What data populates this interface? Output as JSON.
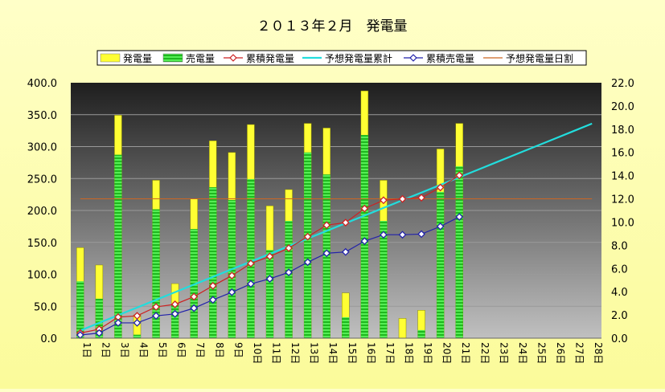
{
  "chart_data": {
    "type": "bar",
    "title": "２０１３年２月　発電量",
    "categories": [
      "1日",
      "2日",
      "3日",
      "4日",
      "5日",
      "6日",
      "7日",
      "8日",
      "9日",
      "10日",
      "11日",
      "12日",
      "13日",
      "14日",
      "15日",
      "16日",
      "17日",
      "18日",
      "19日",
      "20日",
      "21日",
      "22日",
      "23日",
      "24日",
      "25日",
      "26日",
      "27日",
      "28日"
    ],
    "y_left": {
      "ylim": [
        0,
        400
      ],
      "ticks": [
        "0.0",
        "50.0",
        "100.0",
        "150.0",
        "200.0",
        "250.0",
        "300.0",
        "350.0",
        "400.0"
      ]
    },
    "y_right": {
      "ylim": [
        0,
        22
      ],
      "ticks": [
        "0.0",
        "2.0",
        "4.0",
        "6.0",
        "8.0",
        "10.0",
        "12.0",
        "14.0",
        "16.0",
        "18.0",
        "20.0",
        "22.0"
      ]
    },
    "grid": true,
    "legend_position": "top",
    "series": [
      {
        "name": "発電量",
        "kind": "bar",
        "axis": "right",
        "color": "#ffff33",
        "values": [
          7.8,
          6.3,
          19.2,
          2.0,
          13.6,
          4.7,
          12.0,
          17.0,
          16.0,
          18.4,
          11.4,
          12.8,
          18.5,
          18.1,
          3.9,
          21.3,
          13.6,
          1.7,
          2.4,
          16.3,
          18.5,
          null,
          null,
          null,
          null,
          null,
          null,
          null
        ]
      },
      {
        "name": "売電量",
        "kind": "bar",
        "axis": "right",
        "color": "#33dd33",
        "values": [
          4.9,
          3.4,
          15.8,
          0.3,
          11.1,
          2.9,
          9.4,
          13.0,
          11.9,
          13.7,
          7.6,
          10.1,
          16.0,
          14.1,
          1.8,
          17.5,
          10.1,
          0.0,
          0.7,
          12.6,
          14.8,
          null,
          null,
          null,
          null,
          null,
          null,
          null
        ]
      },
      {
        "name": "累積発電量",
        "kind": "line",
        "axis": "left",
        "color": "#cc2222",
        "values": [
          8,
          14,
          33,
          35,
          49,
          53,
          65,
          82,
          98,
          117,
          128,
          141,
          159,
          177,
          181,
          203,
          216,
          218,
          220,
          236,
          255,
          null,
          null,
          null,
          null,
          null,
          null,
          null
        ]
      },
      {
        "name": "予想発電量累計",
        "kind": "line",
        "axis": "left",
        "color": "#22dddd",
        "values": [
          12.0,
          24.0,
          36.0,
          48.0,
          60.0,
          72.0,
          84.0,
          96.0,
          108.0,
          120.0,
          132.0,
          144.0,
          156.0,
          168.0,
          180.0,
          192.0,
          204.0,
          216.0,
          228.0,
          240.0,
          252.0,
          264.0,
          276.0,
          288.0,
          300.0,
          312.0,
          324.0,
          336.0
        ]
      },
      {
        "name": "累積売電量",
        "kind": "line",
        "axis": "left",
        "color": "#2222aa",
        "values": [
          5,
          8,
          24,
          24,
          35,
          38,
          47,
          60,
          72,
          85,
          93,
          103,
          119,
          133,
          135,
          152,
          162,
          162,
          163,
          175,
          190,
          null,
          null,
          null,
          null,
          null,
          null,
          null
        ]
      },
      {
        "name": "予想発電量日割",
        "kind": "line",
        "axis": "right",
        "color": "#cc6622",
        "values": [
          12.0,
          12.0,
          12.0,
          12.0,
          12.0,
          12.0,
          12.0,
          12.0,
          12.0,
          12.0,
          12.0,
          12.0,
          12.0,
          12.0,
          12.0,
          12.0,
          12.0,
          12.0,
          12.0,
          12.0,
          12.0,
          12.0,
          12.0,
          12.0,
          12.0,
          12.0,
          12.0,
          12.0
        ]
      }
    ]
  }
}
